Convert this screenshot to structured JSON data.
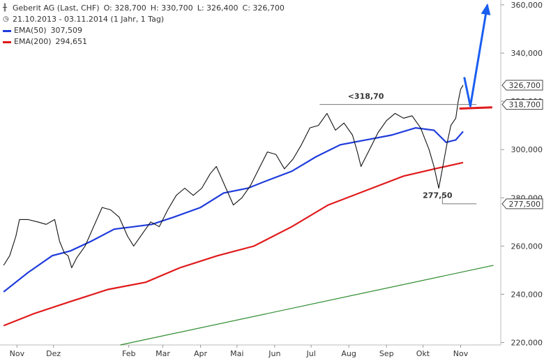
{
  "header": {
    "instrument": "Geberit AG (Last, CHF)",
    "open": "O: 328,700",
    "high": "H: 330,700",
    "low": "L: 326,400",
    "close": "C: 326,700",
    "period": "21.10.2013 - 03.11.2014 (1 Jahr, 1 Tag)",
    "ema50_label": "EMA(50)",
    "ema50_value": "307,509",
    "ema200_label": "EMA(200)",
    "ema200_value": "294,651"
  },
  "chart_data": {
    "type": "line",
    "title": "Geberit AG (Last, CHF)",
    "x_tick_labels": [
      "Nov",
      "Dez",
      "Feb",
      "Mar",
      "Apr",
      "Mai",
      "Jun",
      "Jul",
      "Aug",
      "Sep",
      "Okt",
      "Nov"
    ],
    "y_tick_labels": [
      "220,000",
      "240,000",
      "260,000",
      "280,000",
      "300,000",
      "320,000",
      "340,000",
      "360,000"
    ],
    "y_ticks": [
      220,
      240,
      260,
      280,
      300,
      320,
      340,
      360
    ],
    "ylim": [
      219,
      362
    ],
    "grid": false,
    "legend_position": "top-left",
    "colors": {
      "price": "#111111",
      "ema50": "#1f3cdc",
      "ema200": "#e0191b",
      "trendline": "#2e8b2e",
      "arrow": "#1a5ef0",
      "resistance": "#e0191b"
    },
    "price_series": [
      {
        "x": "2013-10-21",
        "y": 252
      },
      {
        "x": "2013-10-26",
        "y": 256
      },
      {
        "x": "2013-10-31",
        "y": 264
      },
      {
        "x": "2013-11-03",
        "y": 271
      },
      {
        "x": "2013-11-10",
        "y": 271
      },
      {
        "x": "2013-11-18",
        "y": 270
      },
      {
        "x": "2013-11-25",
        "y": 269
      },
      {
        "x": "2013-12-02",
        "y": 271
      },
      {
        "x": "2013-12-06",
        "y": 262
      },
      {
        "x": "2013-12-10",
        "y": 257
      },
      {
        "x": "2013-12-13",
        "y": 256
      },
      {
        "x": "2013-12-16",
        "y": 251
      },
      {
        "x": "2013-12-20",
        "y": 255
      },
      {
        "x": "2013-12-27",
        "y": 260
      },
      {
        "x": "2014-01-03",
        "y": 268
      },
      {
        "x": "2014-01-10",
        "y": 276
      },
      {
        "x": "2014-01-17",
        "y": 275
      },
      {
        "x": "2014-01-24",
        "y": 272
      },
      {
        "x": "2014-01-31",
        "y": 264
      },
      {
        "x": "2014-02-05",
        "y": 260
      },
      {
        "x": "2014-02-12",
        "y": 265
      },
      {
        "x": "2014-02-19",
        "y": 270
      },
      {
        "x": "2014-02-26",
        "y": 268
      },
      {
        "x": "2014-03-05",
        "y": 275
      },
      {
        "x": "2014-03-12",
        "y": 281
      },
      {
        "x": "2014-03-19",
        "y": 284
      },
      {
        "x": "2014-03-26",
        "y": 281
      },
      {
        "x": "2014-04-02",
        "y": 284
      },
      {
        "x": "2014-04-09",
        "y": 290
      },
      {
        "x": "2014-04-14",
        "y": 293
      },
      {
        "x": "2014-04-21",
        "y": 285
      },
      {
        "x": "2014-04-28",
        "y": 277
      },
      {
        "x": "2014-05-05",
        "y": 280
      },
      {
        "x": "2014-05-12",
        "y": 285
      },
      {
        "x": "2014-05-19",
        "y": 292
      },
      {
        "x": "2014-05-26",
        "y": 299
      },
      {
        "x": "2014-06-02",
        "y": 298
      },
      {
        "x": "2014-06-09",
        "y": 292
      },
      {
        "x": "2014-06-16",
        "y": 296
      },
      {
        "x": "2014-06-23",
        "y": 302
      },
      {
        "x": "2014-06-30",
        "y": 309
      },
      {
        "x": "2014-07-07",
        "y": 310
      },
      {
        "x": "2014-07-14",
        "y": 315
      },
      {
        "x": "2014-07-21",
        "y": 308
      },
      {
        "x": "2014-07-28",
        "y": 311
      },
      {
        "x": "2014-08-04",
        "y": 306
      },
      {
        "x": "2014-08-08",
        "y": 299
      },
      {
        "x": "2014-08-11",
        "y": 293
      },
      {
        "x": "2014-08-18",
        "y": 300
      },
      {
        "x": "2014-08-25",
        "y": 307
      },
      {
        "x": "2014-09-01",
        "y": 312
      },
      {
        "x": "2014-09-08",
        "y": 315
      },
      {
        "x": "2014-09-15",
        "y": 313
      },
      {
        "x": "2014-09-22",
        "y": 314
      },
      {
        "x": "2014-09-29",
        "y": 309
      },
      {
        "x": "2014-10-06",
        "y": 300
      },
      {
        "x": "2014-10-10",
        "y": 293
      },
      {
        "x": "2014-10-14",
        "y": 284
      },
      {
        "x": "2014-10-17",
        "y": 292
      },
      {
        "x": "2014-10-21",
        "y": 303
      },
      {
        "x": "2014-10-24",
        "y": 310
      },
      {
        "x": "2014-10-28",
        "y": 313
      },
      {
        "x": "2014-10-30",
        "y": 320
      },
      {
        "x": "2014-11-01",
        "y": 325
      },
      {
        "x": "2014-11-03",
        "y": 326.7
      }
    ],
    "ema50_series": [
      {
        "x": "2013-10-21",
        "y": 241
      },
      {
        "x": "2013-11-10",
        "y": 249
      },
      {
        "x": "2013-11-30",
        "y": 256
      },
      {
        "x": "2013-12-15",
        "y": 258
      },
      {
        "x": "2014-01-01",
        "y": 262
      },
      {
        "x": "2014-01-20",
        "y": 267
      },
      {
        "x": "2014-02-05",
        "y": 268
      },
      {
        "x": "2014-02-20",
        "y": 269
      },
      {
        "x": "2014-03-10",
        "y": 272
      },
      {
        "x": "2014-04-01",
        "y": 276
      },
      {
        "x": "2014-04-20",
        "y": 282
      },
      {
        "x": "2014-05-10",
        "y": 284
      },
      {
        "x": "2014-05-25",
        "y": 287
      },
      {
        "x": "2014-06-15",
        "y": 291
      },
      {
        "x": "2014-07-05",
        "y": 297
      },
      {
        "x": "2014-07-25",
        "y": 302
      },
      {
        "x": "2014-08-15",
        "y": 304
      },
      {
        "x": "2014-09-05",
        "y": 306
      },
      {
        "x": "2014-09-25",
        "y": 309
      },
      {
        "x": "2014-10-10",
        "y": 308
      },
      {
        "x": "2014-10-20",
        "y": 303
      },
      {
        "x": "2014-10-28",
        "y": 304
      },
      {
        "x": "2014-11-03",
        "y": 307.5
      }
    ],
    "ema200_series": [
      {
        "x": "2013-10-21",
        "y": 227
      },
      {
        "x": "2013-11-15",
        "y": 232
      },
      {
        "x": "2013-12-15",
        "y": 237
      },
      {
        "x": "2014-01-15",
        "y": 242
      },
      {
        "x": "2014-02-15",
        "y": 245
      },
      {
        "x": "2014-03-15",
        "y": 251
      },
      {
        "x": "2014-04-15",
        "y": 256
      },
      {
        "x": "2014-05-15",
        "y": 260
      },
      {
        "x": "2014-06-15",
        "y": 268
      },
      {
        "x": "2014-07-15",
        "y": 277
      },
      {
        "x": "2014-08-15",
        "y": 283
      },
      {
        "x": "2014-09-15",
        "y": 289
      },
      {
        "x": "2014-10-15",
        "y": 292.5
      },
      {
        "x": "2014-11-03",
        "y": 294.6
      }
    ],
    "trendline": [
      {
        "x": "2014-01-25",
        "y": 219
      },
      {
        "x": "2014-11-28",
        "y": 252
      }
    ],
    "resistance_line": {
      "y": 318.7,
      "x_from": "2014-07-08",
      "x_to": "2014-11-14"
    },
    "support_line": {
      "y": 277.5,
      "x_from": "2014-10-17",
      "x_to": "2014-11-14"
    },
    "red_stub": {
      "x_from": "2014-10-31",
      "x_to": "2014-11-27",
      "y_from": 317,
      "y_to": 317.5
    },
    "forecast_arrow": [
      {
        "x": "2014-11-04",
        "y": 330
      },
      {
        "x": "2014-11-09",
        "y": 318
      },
      {
        "x": "2014-11-23",
        "y": 360
      }
    ],
    "annotations": [
      {
        "text": "<318,70",
        "x": "2014-08-15",
        "y": 321,
        "color": "#e0191b"
      },
      {
        "text": "277,50",
        "x": "2014-10-13",
        "y": 280,
        "color": "#666666"
      }
    ],
    "price_labels": [
      {
        "text": "326,700",
        "y": 326.7
      },
      {
        "text": "318,700",
        "y": 318.7
      },
      {
        "text": "277,500",
        "y": 277.5
      }
    ]
  }
}
